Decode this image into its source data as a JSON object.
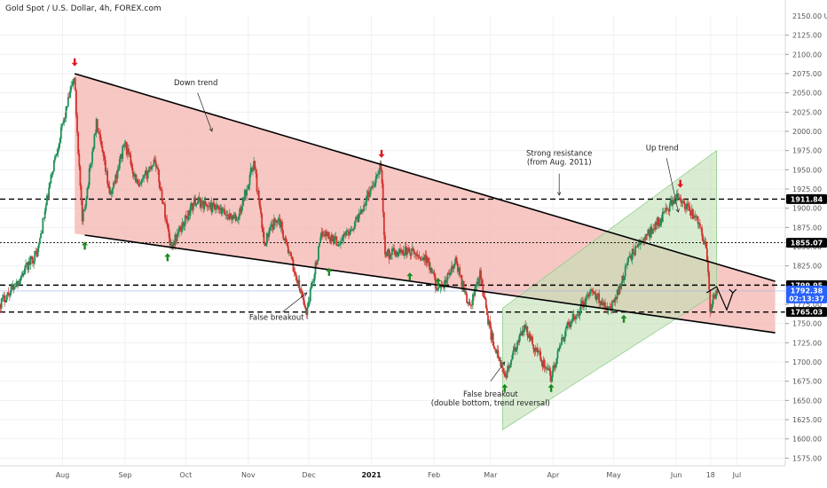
{
  "chart_data": {
    "type": "candlestick",
    "title": "Gold Spot / U.S. Dollar, 4h, FOREX.com",
    "currency": "USD",
    "y_range": [
      1565,
      2150
    ],
    "y_ticks": [
      1575,
      1600,
      1625,
      1650,
      1675,
      1700,
      1725,
      1750,
      1775,
      1800,
      1825,
      1850,
      1875,
      1900,
      1925,
      1950,
      1975,
      2000,
      2025,
      2050,
      2075,
      2100,
      2125
    ],
    "y_tick_labels": [
      "1575.00",
      "1600.00",
      "1625.00",
      "1650.00",
      "1675.00",
      "1700.00",
      "1725.00",
      "1750.00",
      "1775.00",
      "1800.00",
      "1825.00",
      "1850.00",
      "1875.00",
      "1900.00",
      "1925.00",
      "1950.00",
      "1975.00",
      "2000.00",
      "2025.00",
      "2050.00",
      "2075.00",
      "2100.00",
      "2125.00"
    ],
    "y_top_label": "2150.00",
    "x_labels": [
      "Aug",
      "Sep",
      "Oct",
      "Nov",
      "Dec",
      "2021",
      "Feb",
      "Mar",
      "Apr",
      "May",
      "Jun",
      "18",
      "Jul"
    ],
    "x_label_dates": [
      "2020-08-01",
      "2020-09-01",
      "2020-10-01",
      "2020-11-01",
      "2020-12-01",
      "2021-01-01",
      "2021-02-01",
      "2021-03-01",
      "2021-04-01",
      "2021-05-01",
      "2021-06-01",
      "2021-06-18",
      "2021-07-01"
    ],
    "x_range": [
      "2020-07-01",
      "2021-07-25"
    ],
    "price_path": [
      [
        "2020-07-01",
        1775
      ],
      [
        "2020-07-10",
        1805
      ],
      [
        "2020-07-20",
        1845
      ],
      [
        "2020-07-28",
        1960
      ],
      [
        "2020-08-07",
        2072
      ],
      [
        "2020-08-11",
        1880
      ],
      [
        "2020-08-18",
        2010
      ],
      [
        "2020-08-25",
        1915
      ],
      [
        "2020-09-01",
        1985
      ],
      [
        "2020-09-08",
        1925
      ],
      [
        "2020-09-16",
        1965
      ],
      [
        "2020-09-24",
        1850
      ],
      [
        "2020-10-06",
        1910
      ],
      [
        "2020-10-15",
        1900
      ],
      [
        "2020-10-27",
        1885
      ],
      [
        "2020-11-04",
        1960
      ],
      [
        "2020-11-09",
        1855
      ],
      [
        "2020-11-16",
        1890
      ],
      [
        "2020-11-30",
        1765
      ],
      [
        "2020-12-08",
        1870
      ],
      [
        "2020-12-16",
        1855
      ],
      [
        "2020-12-24",
        1880
      ],
      [
        "2021-01-06",
        1955
      ],
      [
        "2021-01-08",
        1840
      ],
      [
        "2021-01-18",
        1845
      ],
      [
        "2021-01-28",
        1835
      ],
      [
        "2021-02-04",
        1790
      ],
      [
        "2021-02-12",
        1830
      ],
      [
        "2021-02-19",
        1770
      ],
      [
        "2021-02-24",
        1815
      ],
      [
        "2021-03-01",
        1740
      ],
      [
        "2021-03-08",
        1680
      ],
      [
        "2021-03-18",
        1745
      ],
      [
        "2021-03-31",
        1680
      ],
      [
        "2021-04-08",
        1745
      ],
      [
        "2021-04-20",
        1790
      ],
      [
        "2021-04-30",
        1770
      ],
      [
        "2021-05-10",
        1840
      ],
      [
        "2021-05-24",
        1885
      ],
      [
        "2021-06-01",
        1915
      ],
      [
        "2021-06-08",
        1895
      ],
      [
        "2021-06-12",
        1885
      ],
      [
        "2021-06-16",
        1850
      ],
      [
        "2021-06-18",
        1770
      ],
      [
        "2021-06-21",
        1792
      ]
    ],
    "horizontal_levels": [
      {
        "price": 1911.84,
        "style": "dashed-bold"
      },
      {
        "price": 1855.07,
        "style": "dotted"
      },
      {
        "price": 1799.95,
        "style": "dashed-bold"
      },
      {
        "price": 1765.03,
        "style": "dashed-bold"
      }
    ],
    "price_labels": [
      {
        "price": 1911.84,
        "text": "1911.84",
        "type": "level"
      },
      {
        "price": 1855.07,
        "text": "1855.07",
        "type": "level"
      },
      {
        "price": 1799.95,
        "text": "1799.95",
        "type": "level"
      },
      {
        "price": 1792.38,
        "text": "1792.38",
        "type": "current",
        "sub": "02:13:37",
        "color": "#2962ff"
      },
      {
        "price": 1765.03,
        "text": "1765.03",
        "type": "level"
      }
    ],
    "trendlines": {
      "down_upper": [
        [
          "2020-08-07",
          2075
        ],
        [
          "2021-07-20",
          1805
        ]
      ],
      "down_lower": [
        [
          "2020-08-12",
          1865
        ],
        [
          "2021-07-20",
          1738
        ]
      ],
      "up_lower": [
        [
          "2021-03-07",
          1612
        ],
        [
          "2021-06-21",
          1790
        ]
      ],
      "up_upper": [
        [
          "2021-03-07",
          1770
        ],
        [
          "2021-06-21",
          1975
        ]
      ]
    },
    "annotations": [
      {
        "lines": [
          "Down trend"
        ],
        "at": [
          "2020-10-06",
          2060
        ]
      },
      {
        "lines": [
          "Strong resistance",
          "(from Aug. 2011)"
        ],
        "at": [
          "2021-04-04",
          1968
        ]
      },
      {
        "lines": [
          "Up trend"
        ],
        "at": [
          "2021-05-25",
          1975
        ]
      },
      {
        "lines": [
          "False breakout"
        ],
        "at": [
          "2020-11-15",
          1755
        ]
      },
      {
        "lines": [
          "False breakout",
          "(double bottom, trend reversal)"
        ],
        "at": [
          "2021-03-01",
          1655
        ]
      }
    ],
    "arrows_down_red": [
      [
        "2020-08-07",
        2088
      ],
      [
        "2021-01-06",
        1969
      ],
      [
        "2021-06-03",
        1930
      ]
    ],
    "arrows_up_green": [
      [
        "2020-08-12",
        1853
      ],
      [
        "2020-09-22",
        1838
      ],
      [
        "2020-12-11",
        1819
      ],
      [
        "2021-01-20",
        1813
      ],
      [
        "2021-02-03",
        1806
      ],
      [
        "2021-03-08",
        1668
      ],
      [
        "2021-03-31",
        1668
      ],
      [
        "2021-05-06",
        1758
      ]
    ],
    "projection": [
      [
        "2021-06-16",
        1790
      ],
      [
        "2021-06-21",
        1798
      ],
      [
        "2021-06-26",
        1768
      ],
      [
        "2021-06-29",
        1790
      ]
    ],
    "colors": {
      "down_channel_fill": "#f4b4b0",
      "up_channel_fill": "#bfe0b4",
      "bull_candle": "#1e8f5a",
      "bear_candle": "#d2342f",
      "arrow_red": "#e0161d",
      "arrow_green": "#1a8a1f",
      "current_price": "#2962ff"
    }
  }
}
